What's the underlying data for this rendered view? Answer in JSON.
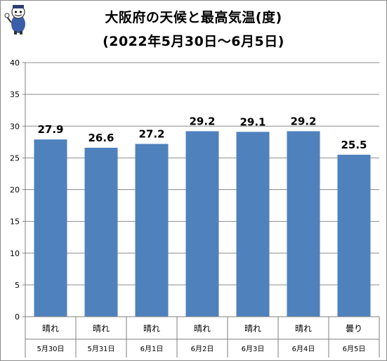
{
  "chart_data": {
    "type": "bar",
    "title": "大阪府の天候と最高気温(度)",
    "subtitle": "(2022年5月30日～6月5日)",
    "categories": [
      "5月30日",
      "5月31日",
      "6月1日",
      "6月2日",
      "6月3日",
      "6月4日",
      "6月5日"
    ],
    "weather": [
      "晴れ",
      "晴れ",
      "晴れ",
      "晴れ",
      "晴れ",
      "晴れ",
      "曇り"
    ],
    "series": [
      {
        "values": [
          27.9,
          26.6,
          27.2,
          29.2,
          29.1,
          29.2,
          25.5
        ]
      }
    ],
    "data_labels": [
      "27.9",
      "26.6",
      "27.2",
      "29.2",
      "29.1",
      "29.2",
      "25.5"
    ],
    "ylim": [
      0,
      40
    ],
    "yticks": [
      0,
      5,
      10,
      15,
      20,
      25,
      30,
      35,
      40
    ],
    "ytick_labels": [
      "0",
      "5",
      "10",
      "15",
      "20",
      "25",
      "30",
      "35",
      "40"
    ],
    "grid": true,
    "colors": {
      "bar": "#4f81bd",
      "grid": "#8c8c8c",
      "axis": "#7f7f7f",
      "text": "#000000"
    }
  }
}
